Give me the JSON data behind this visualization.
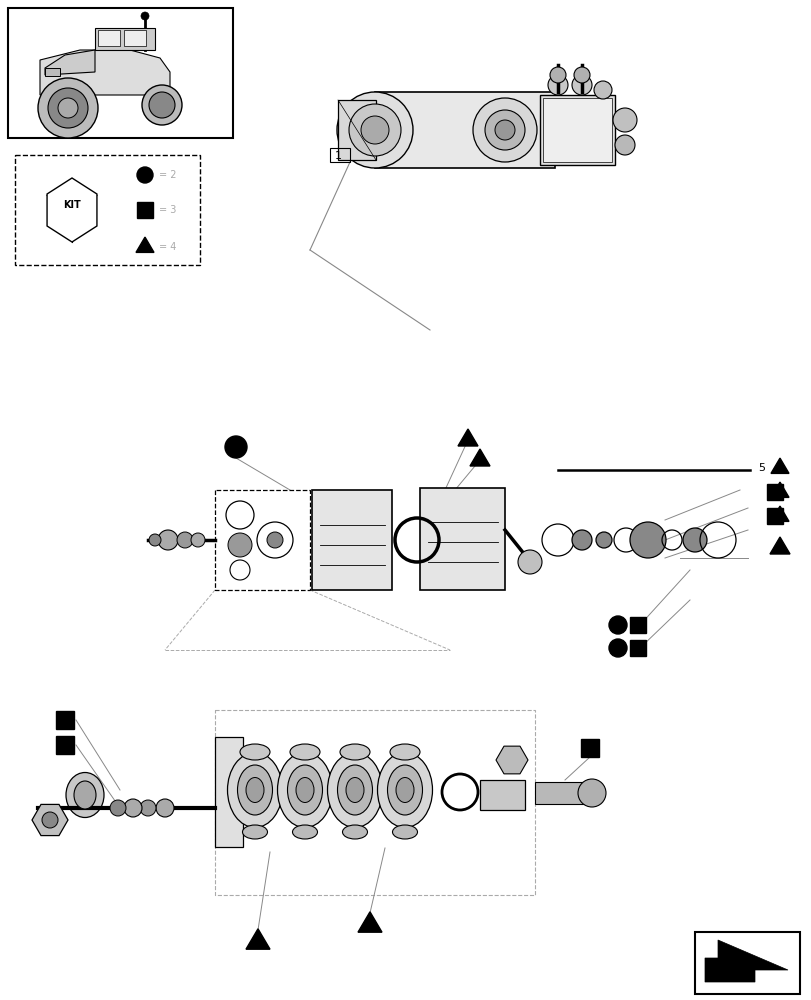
{
  "bg_color": "#ffffff",
  "line_color": "#000000",
  "light_gray": "#aaaaaa",
  "mid_gray": "#888888",
  "dark_color": "#222222"
}
